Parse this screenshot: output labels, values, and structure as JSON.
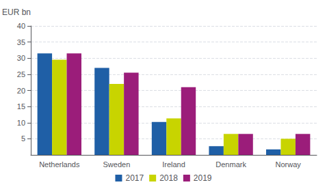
{
  "chart_data": {
    "type": "bar",
    "ylabel": "EUR bn",
    "categories": [
      "Netherlands",
      "Sweden",
      "Ireland",
      "Denmark",
      "Norway"
    ],
    "series": [
      {
        "name": "2017",
        "color": "#1F5FA6",
        "values": [
          31.5,
          27.0,
          10.2,
          2.7,
          1.7
        ]
      },
      {
        "name": "2018",
        "color": "#C8D400",
        "values": [
          29.5,
          22.0,
          11.3,
          6.5,
          5.0
        ]
      },
      {
        "name": "2019",
        "color": "#9B1D7A",
        "values": [
          31.5,
          25.5,
          21.0,
          6.5,
          6.5
        ]
      }
    ],
    "ylim": [
      0,
      40
    ],
    "yticks": [
      5,
      10,
      15,
      20,
      25,
      30,
      35,
      40
    ],
    "grid": true,
    "legend": "bottom"
  }
}
